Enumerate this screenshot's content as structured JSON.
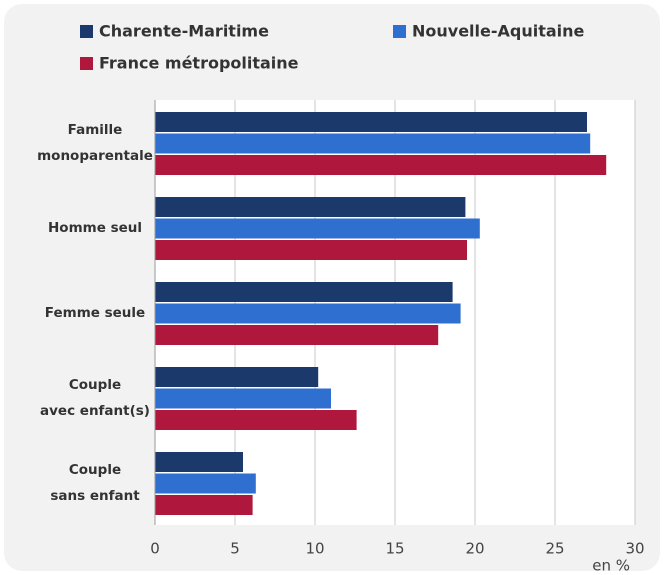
{
  "chart_data": {
    "type": "bar",
    "orientation": "horizontal",
    "categories": [
      [
        "Famille",
        "monoparentale"
      ],
      [
        "Homme seul"
      ],
      [
        "Femme seule"
      ],
      [
        "Couple",
        "avec enfant(s)"
      ],
      [
        "Couple",
        "sans enfant"
      ]
    ],
    "series": [
      {
        "name": "Charente-Maritime",
        "color": "#1b3a6b",
        "values": [
          27.0,
          19.4,
          18.6,
          10.2,
          5.5
        ]
      },
      {
        "name": "Nouvelle-Aquitaine",
        "color": "#2f6fcf",
        "values": [
          27.2,
          20.3,
          19.1,
          11.0,
          6.3
        ]
      },
      {
        "name": "France métropolitaine",
        "color": "#b0173d",
        "values": [
          28.2,
          19.5,
          17.7,
          12.6,
          6.1
        ]
      }
    ],
    "x_label": "en %",
    "xlim": [
      0,
      30
    ],
    "xticks": [
      0,
      5,
      10,
      15,
      20,
      25,
      30
    ],
    "grid": true
  }
}
